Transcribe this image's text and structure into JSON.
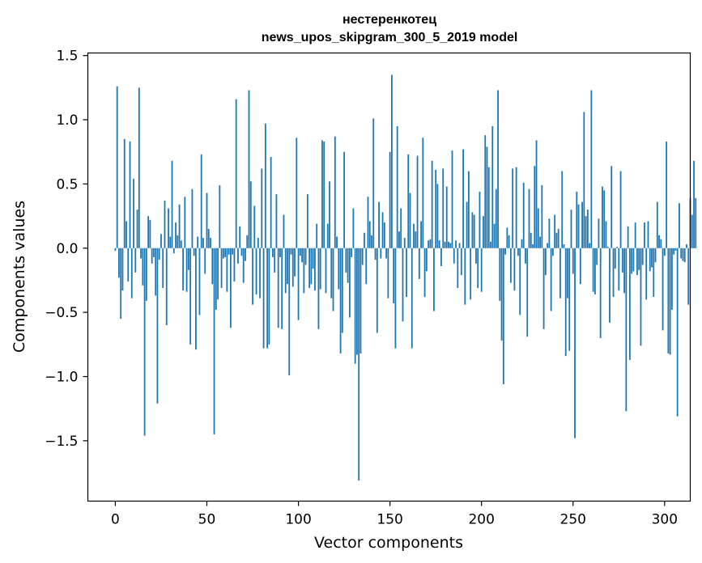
{
  "chart_data": {
    "type": "bar",
    "title": "нестеренкотец",
    "subtitle": "news_upos_skipgram_300_5_2019 model",
    "xlabel": "Vector components",
    "ylabel": "Components values",
    "xlim": [
      -15,
      314
    ],
    "ylim": [
      -1.97,
      1.52
    ],
    "xticks": [
      0,
      50,
      100,
      150,
      200,
      250,
      300
    ],
    "yticks": [
      1.5,
      1.0,
      0.5,
      0.0,
      -0.5,
      -1.0,
      -1.5
    ],
    "ytick_labels": [
      "1.5",
      "1.0",
      "0.5",
      "0.0",
      "−0.5",
      "−1.0",
      "−1.5"
    ],
    "grid": false,
    "bar_color": "#1f77b4",
    "values": [
      -0.02,
      1.26,
      -0.23,
      -0.55,
      -0.33,
      0.85,
      0.21,
      -0.26,
      0.83,
      -0.39,
      0.54,
      -0.19,
      0.3,
      1.25,
      -0.08,
      -0.29,
      -1.46,
      -0.41,
      0.25,
      0.22,
      -0.12,
      -0.07,
      -0.37,
      -1.21,
      -0.09,
      0.11,
      -0.31,
      0.37,
      -0.6,
      0.31,
      0.09,
      0.68,
      -0.04,
      0.2,
      0.1,
      0.34,
      0.06,
      -0.33,
      0.4,
      -0.34,
      -0.17,
      -0.75,
      0.46,
      -0.06,
      -0.79,
      0.09,
      -0.52,
      0.73,
      0.08,
      -0.2,
      0.43,
      0.15,
      0.08,
      -0.28,
      -1.45,
      -0.48,
      -0.4,
      0.49,
      -0.31,
      -0.08,
      -0.07,
      -0.34,
      -0.05,
      -0.62,
      -0.05,
      -0.26,
      1.16,
      -0.12,
      0.17,
      -0.06,
      -0.27,
      -0.1,
      0.1,
      1.23,
      0.52,
      -0.44,
      0.33,
      -0.36,
      0.08,
      -0.39,
      0.62,
      -0.78,
      0.97,
      -0.78,
      -0.75,
      0.71,
      -0.07,
      -0.19,
      0.42,
      -0.62,
      -0.07,
      -0.63,
      0.26,
      -0.35,
      -0.28,
      -0.99,
      -0.05,
      -0.3,
      -0.22,
      0.86,
      -0.56,
      -0.06,
      -0.11,
      -0.35,
      -0.13,
      0.42,
      -0.31,
      -0.28,
      -0.16,
      -0.33,
      0.19,
      -0.63,
      -0.32,
      0.84,
      0.83,
      -0.35,
      0.19,
      0.52,
      -0.39,
      -0.49,
      0.87,
      0.09,
      -0.32,
      -0.82,
      -0.66,
      0.75,
      -0.19,
      -0.27,
      -0.54,
      -0.07,
      0.31,
      -0.9,
      -0.83,
      -1.81,
      -0.82,
      -0.13,
      0.12,
      -0.28,
      0.4,
      0.21,
      0.1,
      1.01,
      -0.09,
      -0.66,
      0.36,
      -0.08,
      0.28,
      0.2,
      -0.08,
      -0.39,
      0.75,
      1.35,
      -0.43,
      -0.78,
      0.95,
      0.13,
      0.31,
      -0.57,
      0.08,
      -0.38,
      0.73,
      0.43,
      -0.78,
      0.19,
      0.13,
      0.72,
      -0.24,
      0.21,
      0.86,
      -0.38,
      -0.18,
      0.06,
      0.07,
      0.68,
      -0.49,
      0.61,
      0.5,
      0.06,
      -0.14,
      0.62,
      0.05,
      0.48,
      0.05,
      0.04,
      0.76,
      -0.12,
      0.06,
      -0.31,
      0.04,
      -0.21,
      0.77,
      -0.44,
      0.36,
      0.6,
      -0.4,
      0.28,
      0.26,
      -0.12,
      -0.31,
      0.44,
      -0.34,
      0.25,
      0.88,
      0.79,
      0.63,
      0.05,
      0.95,
      0.19,
      0.46,
      1.23,
      -0.41,
      -0.72,
      -1.06,
      -0.05,
      0.16,
      0.1,
      -0.27,
      0.62,
      -0.33,
      0.63,
      -0.06,
      -0.52,
      0.07,
      0.51,
      -0.12,
      -0.69,
      0.46,
      0.12,
      0.03,
      0.64,
      0.84,
      0.31,
      0.09,
      0.49,
      -0.63,
      -0.21,
      0.04,
      0.23,
      -0.49,
      -0.06,
      0.26,
      0.12,
      0.15,
      -0.39,
      0.6,
      0.03,
      -0.84,
      -0.39,
      -0.8,
      0.3,
      -0.2,
      -1.48,
      0.44,
      0.34,
      -0.28,
      0.36,
      1.06,
      0.25,
      0.3,
      0.04,
      1.23,
      -0.34,
      -0.36,
      -0.13,
      0.23,
      -0.7,
      0.48,
      0.45,
      0.21,
      0.01,
      -0.58,
      0.64,
      -0.38,
      -0.16,
      0.01,
      -0.33,
      0.6,
      -0.19,
      -0.35,
      -1.27,
      0.17,
      -0.87,
      -0.2,
      -0.18,
      0.2,
      -0.21,
      -0.17,
      -0.76,
      -0.13,
      0.2,
      -0.4,
      0.21,
      -0.18,
      -0.15,
      -0.38,
      -0.11,
      0.36,
      0.1,
      0.07,
      -0.64,
      -0.06,
      0.83,
      -0.82,
      -0.83,
      -0.48,
      -0.05,
      -0.02,
      -1.31,
      0.35,
      -0.08,
      -0.1,
      -0.11,
      0.03,
      -0.44,
      0.39,
      0.26,
      0.68,
      0.39
    ]
  }
}
